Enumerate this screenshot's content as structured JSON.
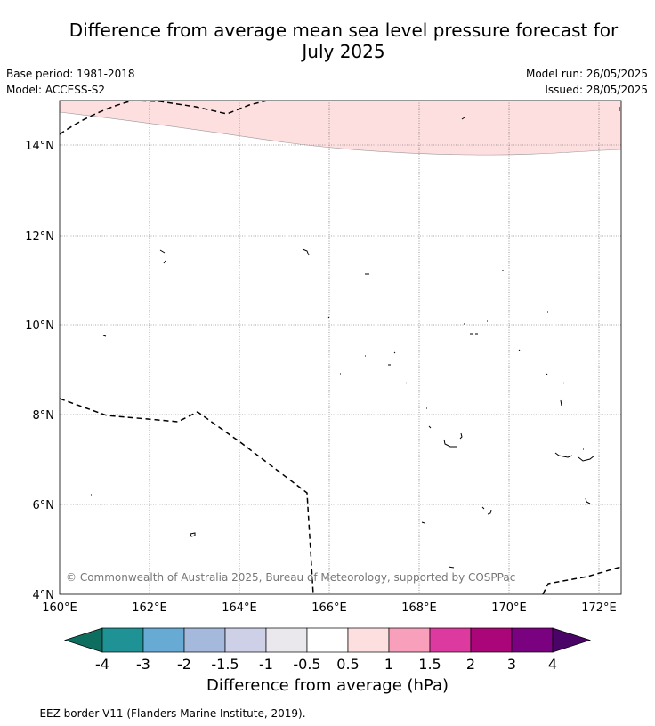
{
  "title_line1": "Difference from average mean sea level pressure forecast for",
  "title_line2": "July 2025",
  "base_period": "Base period: 1981-2018",
  "model": "Model: ACCESS-S2",
  "model_run": "Model run: 26/05/2025",
  "issued": "Issued: 28/05/2025",
  "copyright": "© Commonwealth of Australia 2025, Bureau of Meteorology, supported by COSPPac",
  "x_ticks": [
    "160°E",
    "162°E",
    "164°E",
    "166°E",
    "168°E",
    "170°E",
    "172°E"
  ],
  "y_ticks": [
    "14°N",
    "12°N",
    "10°N",
    "8°N",
    "6°N",
    "4°N"
  ],
  "colorbar": {
    "label": "Difference from average (hPa)",
    "ticks": [
      "-4",
      "-3",
      "-2",
      "-1.5",
      "-1",
      "-0.5",
      "0.5",
      "1",
      "1.5",
      "2",
      "3",
      "4"
    ],
    "colors": [
      "#0d6e5f",
      "#1e9294",
      "#67abd5",
      "#a4b9db",
      "#cdd0e7",
      "#eae8ed",
      "#ffffff",
      "#fddfe0",
      "#f89fbb",
      "#dd3aa0",
      "#aa0579",
      "#7a0180",
      "#4a0468"
    ]
  },
  "legend": {
    "marker": "-- -- --",
    "text": "EEZ border V11 (Flanders Marine Institute, 2019)."
  }
}
